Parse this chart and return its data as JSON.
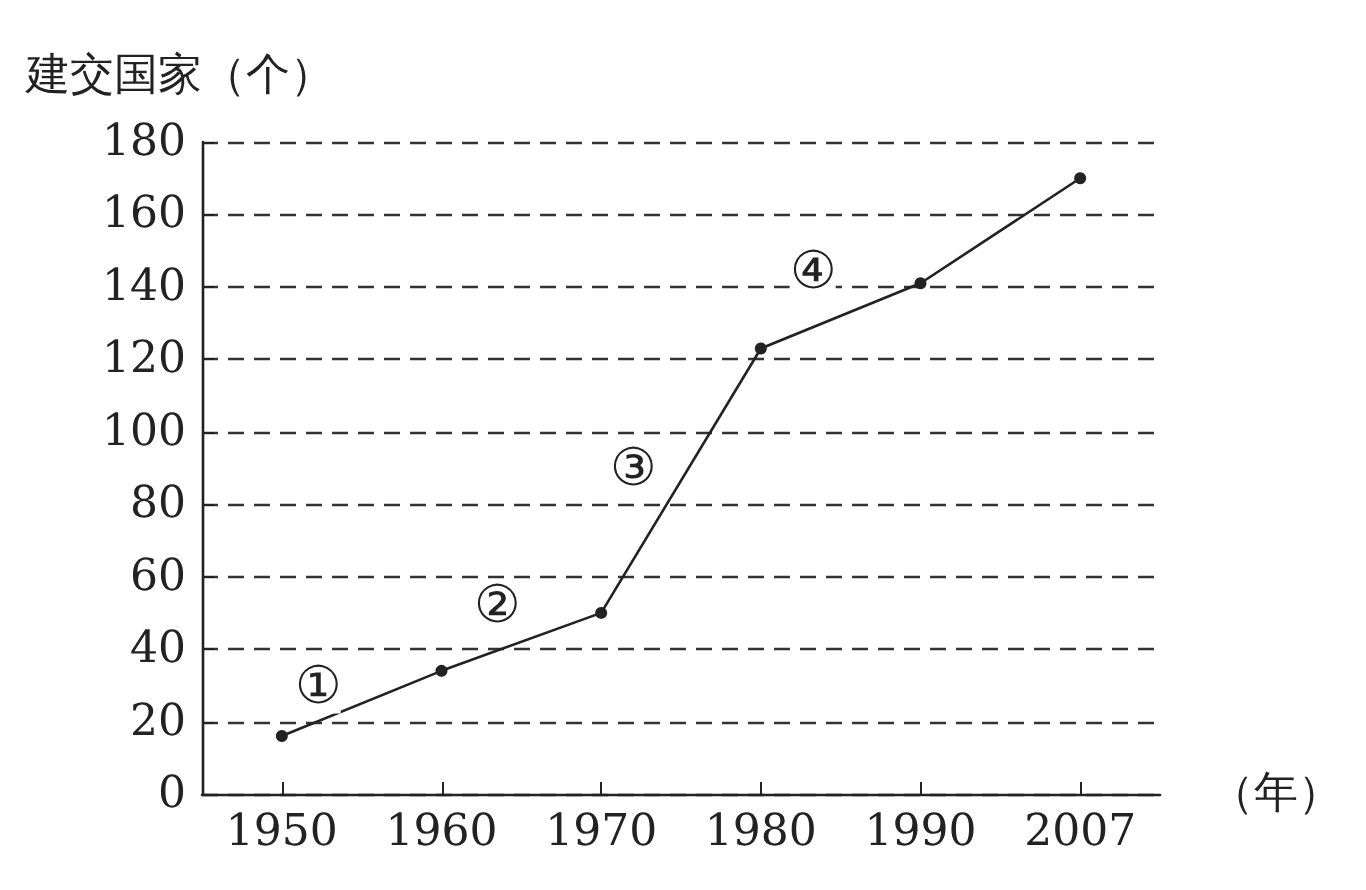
{
  "chart_data": {
    "type": "line",
    "ylabel": "建交国家（个）",
    "xlabel": "（年）",
    "categories": [
      "1950",
      "1960",
      "1970",
      "1980",
      "1990",
      "2007"
    ],
    "series": [
      {
        "color": "#222222",
        "values": [
          16,
          34,
          50,
          123,
          141,
          170
        ]
      }
    ],
    "ylim": [
      0,
      180
    ],
    "yticks": [
      0,
      20,
      40,
      60,
      80,
      100,
      120,
      140,
      160,
      180
    ],
    "grid": "y",
    "marker": "circle",
    "line_style": "solid",
    "annotations": [
      "①",
      "②",
      "③",
      "④"
    ]
  }
}
